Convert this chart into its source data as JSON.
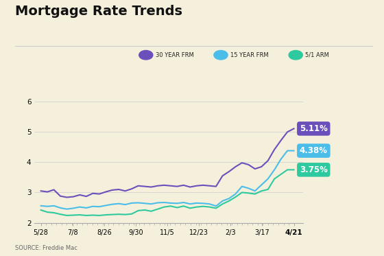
{
  "title": "Mortgage Rate Trends",
  "background_color": "#f5f0dc",
  "source_text": "SOURCE: Freddie Mac",
  "x_labels": [
    "5/28",
    "7/8",
    "8/26",
    "9/30",
    "11/5",
    "12/23",
    "2/3",
    "3/17",
    "4/21"
  ],
  "y_ticks": [
    2,
    3,
    4,
    5,
    6
  ],
  "ylim": [
    2.0,
    6.4
  ],
  "legend_entries": [
    "30 YEAR FRM",
    "15 YEAR FRM",
    "5/1 ARM"
  ],
  "legend_colors": [
    "#6b4fbb",
    "#4abde8",
    "#2ec99e"
  ],
  "line_colors": [
    "#6b4fbb",
    "#4abde8",
    "#2ec99e"
  ],
  "end_labels": [
    "5.11%",
    "4.38%",
    "3.75%"
  ],
  "end_label_colors": [
    "#6b4fbb",
    "#4abde8",
    "#2ec99e"
  ],
  "series_30yr": [
    3.05,
    3.02,
    3.09,
    2.88,
    2.84,
    2.86,
    2.92,
    2.87,
    2.97,
    2.95,
    3.02,
    3.08,
    3.1,
    3.05,
    3.12,
    3.22,
    3.2,
    3.18,
    3.22,
    3.24,
    3.22,
    3.2,
    3.24,
    3.18,
    3.22,
    3.24,
    3.22,
    3.2,
    3.55,
    3.69,
    3.85,
    3.98,
    3.92,
    3.78,
    3.85,
    4.05,
    4.42,
    4.72,
    5.0,
    5.11
  ],
  "series_15yr": [
    2.56,
    2.54,
    2.56,
    2.49,
    2.45,
    2.48,
    2.52,
    2.49,
    2.54,
    2.53,
    2.57,
    2.61,
    2.63,
    2.6,
    2.65,
    2.66,
    2.64,
    2.62,
    2.66,
    2.67,
    2.65,
    2.64,
    2.67,
    2.62,
    2.65,
    2.64,
    2.62,
    2.55,
    2.72,
    2.8,
    2.95,
    3.2,
    3.14,
    3.05,
    3.25,
    3.45,
    3.75,
    4.1,
    4.38,
    4.38
  ],
  "series_arm": [
    2.42,
    2.35,
    2.33,
    2.28,
    2.24,
    2.25,
    2.26,
    2.24,
    2.25,
    2.24,
    2.26,
    2.27,
    2.28,
    2.27,
    2.29,
    2.4,
    2.42,
    2.38,
    2.45,
    2.52,
    2.55,
    2.5,
    2.55,
    2.48,
    2.52,
    2.54,
    2.52,
    2.48,
    2.62,
    2.72,
    2.85,
    3.0,
    2.98,
    2.95,
    3.05,
    3.1,
    3.45,
    3.6,
    3.75,
    3.75
  ]
}
